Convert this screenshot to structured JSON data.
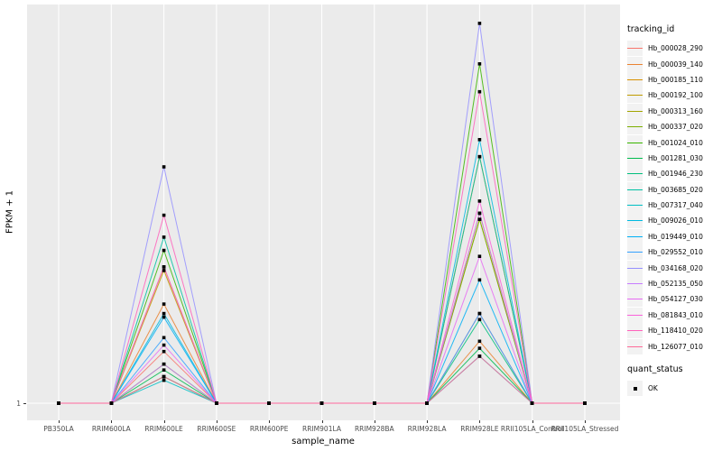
{
  "figure": {
    "y_tick_label": "1"
  },
  "legend": {
    "tracking_title": "tracking_id",
    "quant_title": "quant_status",
    "quant_items": [
      {
        "label": "OK",
        "marker": "black-square"
      }
    ]
  },
  "chart_data": {
    "type": "line",
    "title": "",
    "xlabel": "sample_name",
    "ylabel": "FPKM + 1",
    "x_categories": [
      "PB350LA",
      "RRIM600LA",
      "RRIM600LE",
      "RRIM600SE",
      "RRIM600PE",
      "RRIM901LA",
      "RRIM928BA",
      "RRIM928LA",
      "RRIM928LE",
      "RRII105LA_Control",
      "RRII105LA_Stressed"
    ],
    "y_scale": "log10",
    "y_ticks": [
      1
    ],
    "ylim_approx": [
      1,
      1100
    ],
    "grid": true,
    "legend_position": "right",
    "point_marker": "black square (quant_status = OK)",
    "panel_background": "#EBEBEB",
    "gridline_color": "#FFFFFF",
    "series": [
      {
        "name": "Hb_000028_290",
        "color": "#F8766D",
        "values": [
          1,
          1,
          2.5,
          1,
          1,
          1,
          1,
          1,
          4.9,
          1,
          1
        ]
      },
      {
        "name": "Hb_000039_140",
        "color": "#EA8331",
        "values": [
          1,
          1,
          5.8,
          1,
          1,
          1,
          1,
          1,
          3.0,
          1,
          1
        ]
      },
      {
        "name": "Hb_000185_110",
        "color": "#D89000",
        "values": [
          1,
          1,
          11.2,
          1,
          1,
          1,
          1,
          1,
          79,
          1,
          1
        ]
      },
      {
        "name": "Hb_000192_100",
        "color": "#C09B00",
        "values": [
          1,
          1,
          10.5,
          1,
          1,
          1,
          1,
          1,
          29,
          1,
          1
        ]
      },
      {
        "name": "Hb_000313_160",
        "color": "#A3A500",
        "values": [
          1,
          1,
          1.6,
          1,
          1,
          1,
          1,
          1,
          26,
          1,
          1
        ]
      },
      {
        "name": "Hb_000337_020",
        "color": "#7CAE00",
        "values": [
          1,
          1,
          2.0,
          1,
          1,
          1,
          1,
          1,
          26,
          1,
          1
        ]
      },
      {
        "name": "Hb_001024_010",
        "color": "#39B600",
        "values": [
          1,
          1,
          15,
          1,
          1,
          1,
          1,
          1,
          410,
          1,
          1
        ]
      },
      {
        "name": "Hb_001281_030",
        "color": "#00BB4E",
        "values": [
          1,
          1,
          1.8,
          1,
          1,
          1,
          1,
          1,
          2.65,
          1,
          1
        ]
      },
      {
        "name": "Hb_001946_230",
        "color": "#00BF7D",
        "values": [
          1,
          1,
          1.6,
          1,
          1,
          1,
          1,
          1,
          4.4,
          1,
          1
        ]
      },
      {
        "name": "Hb_003685_020",
        "color": "#00C1A3",
        "values": [
          1,
          1,
          19,
          1,
          1,
          1,
          1,
          1,
          79,
          1,
          1
        ]
      },
      {
        "name": "Hb_007317_040",
        "color": "#00BFC4",
        "values": [
          1,
          1,
          1.5,
          1,
          1,
          1,
          1,
          1,
          2.3,
          1,
          1
        ]
      },
      {
        "name": "Hb_009026_010",
        "color": "#00BAE0",
        "values": [
          1,
          1,
          4.9,
          1,
          1,
          1,
          1,
          1,
          107,
          1,
          1
        ]
      },
      {
        "name": "Hb_019449_010",
        "color": "#00B0F6",
        "values": [
          1,
          1,
          4.6,
          1,
          1,
          1,
          1,
          1,
          8.9,
          1,
          1
        ]
      },
      {
        "name": "Hb_029552_010",
        "color": "#35A2FF",
        "values": [
          1,
          1,
          3.2,
          1,
          1,
          1,
          1,
          1,
          4.9,
          1,
          1
        ]
      },
      {
        "name": "Hb_034168_020",
        "color": "#9590FF",
        "values": [
          1,
          1,
          66,
          1,
          1,
          1,
          1,
          1,
          840,
          1,
          1
        ]
      },
      {
        "name": "Hb_052135_050",
        "color": "#C77CFF",
        "values": [
          1,
          1,
          2.0,
          1,
          1,
          1,
          1,
          1,
          29,
          1,
          1
        ]
      },
      {
        "name": "Hb_054127_030",
        "color": "#E76BF3",
        "values": [
          1,
          1,
          2.8,
          1,
          1,
          1,
          1,
          1,
          13.5,
          1,
          1
        ]
      },
      {
        "name": "Hb_081843_010",
        "color": "#FA62DB",
        "values": [
          1,
          1,
          11.2,
          1,
          1,
          1,
          1,
          1,
          36,
          1,
          1
        ]
      },
      {
        "name": "Hb_118410_020",
        "color": "#FF62BC",
        "values": [
          1,
          1,
          28,
          1,
          1,
          1,
          1,
          1,
          250,
          1,
          1
        ]
      },
      {
        "name": "Hb_126077_010",
        "color": "#FF6A98",
        "values": [
          1,
          1,
          1.6,
          1,
          1,
          1,
          1,
          1,
          2.3,
          1,
          1
        ]
      }
    ]
  }
}
